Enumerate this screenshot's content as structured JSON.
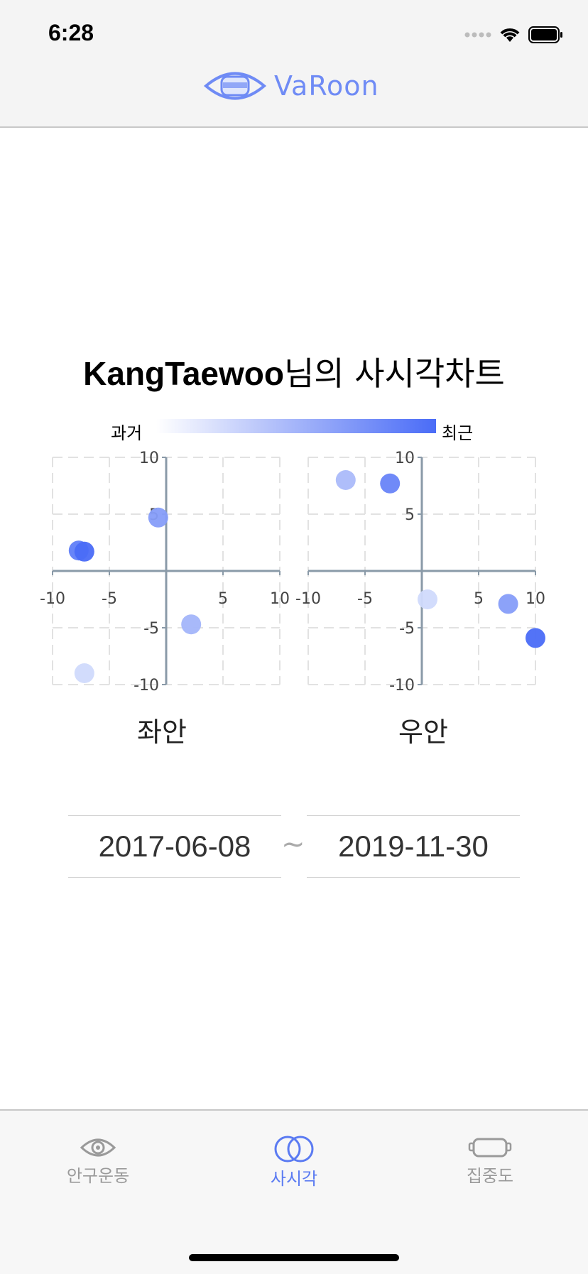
{
  "status_bar": {
    "time": "6:28"
  },
  "header": {
    "logo_text": "VaRoon"
  },
  "page": {
    "title_user": "KangTaewoo",
    "title_suffix": "님의 사시각차트",
    "legend_past": "과거",
    "legend_recent": "최근",
    "date_from": "2017-06-08",
    "date_separator": "~",
    "date_to": "2019-11-30"
  },
  "chart_data": [
    {
      "type": "scatter",
      "title": "좌안",
      "xlim": [
        -10,
        10
      ],
      "ylim": [
        -10,
        10
      ],
      "x_ticks": [
        "-10",
        "-5",
        "5",
        "10"
      ],
      "y_ticks": [
        "10",
        "5",
        "-5",
        "-10"
      ],
      "grid": true,
      "color_scale": {
        "past": "#dfe6fc",
        "recent": "#4a6cf7"
      },
      "points": [
        {
          "x": -7.2,
          "y": -9.0,
          "recency": 0.1
        },
        {
          "x": 2.2,
          "y": -4.7,
          "recency": 0.4
        },
        {
          "x": -0.7,
          "y": 4.7,
          "recency": 0.6
        },
        {
          "x": -7.7,
          "y": 1.8,
          "recency": 0.85
        },
        {
          "x": -7.2,
          "y": 1.7,
          "recency": 1.0
        }
      ]
    },
    {
      "type": "scatter",
      "title": "우안",
      "xlim": [
        -10,
        10
      ],
      "ylim": [
        -10,
        10
      ],
      "x_ticks": [
        "-10",
        "-5",
        "5",
        "10"
      ],
      "y_ticks": [
        "10",
        "5",
        "-5",
        "-10"
      ],
      "grid": true,
      "color_scale": {
        "past": "#dfe6fc",
        "recent": "#4a6cf7"
      },
      "points": [
        {
          "x": 0.5,
          "y": -2.5,
          "recency": 0.1
        },
        {
          "x": -6.7,
          "y": 8.0,
          "recency": 0.35
        },
        {
          "x": 7.6,
          "y": -2.9,
          "recency": 0.6
        },
        {
          "x": -2.8,
          "y": 7.7,
          "recency": 0.8
        },
        {
          "x": 10.0,
          "y": -5.9,
          "recency": 1.0
        }
      ]
    }
  ],
  "tab_bar": {
    "tabs": [
      {
        "label": "안구운동",
        "icon": "eye-icon",
        "active": false
      },
      {
        "label": "사시각",
        "icon": "overlapping-circles-icon",
        "active": true
      },
      {
        "label": "집중도",
        "icon": "vr-headset-icon",
        "active": false
      }
    ],
    "active_color": "#5b7bf2",
    "inactive_color": "#9a9a9a"
  }
}
